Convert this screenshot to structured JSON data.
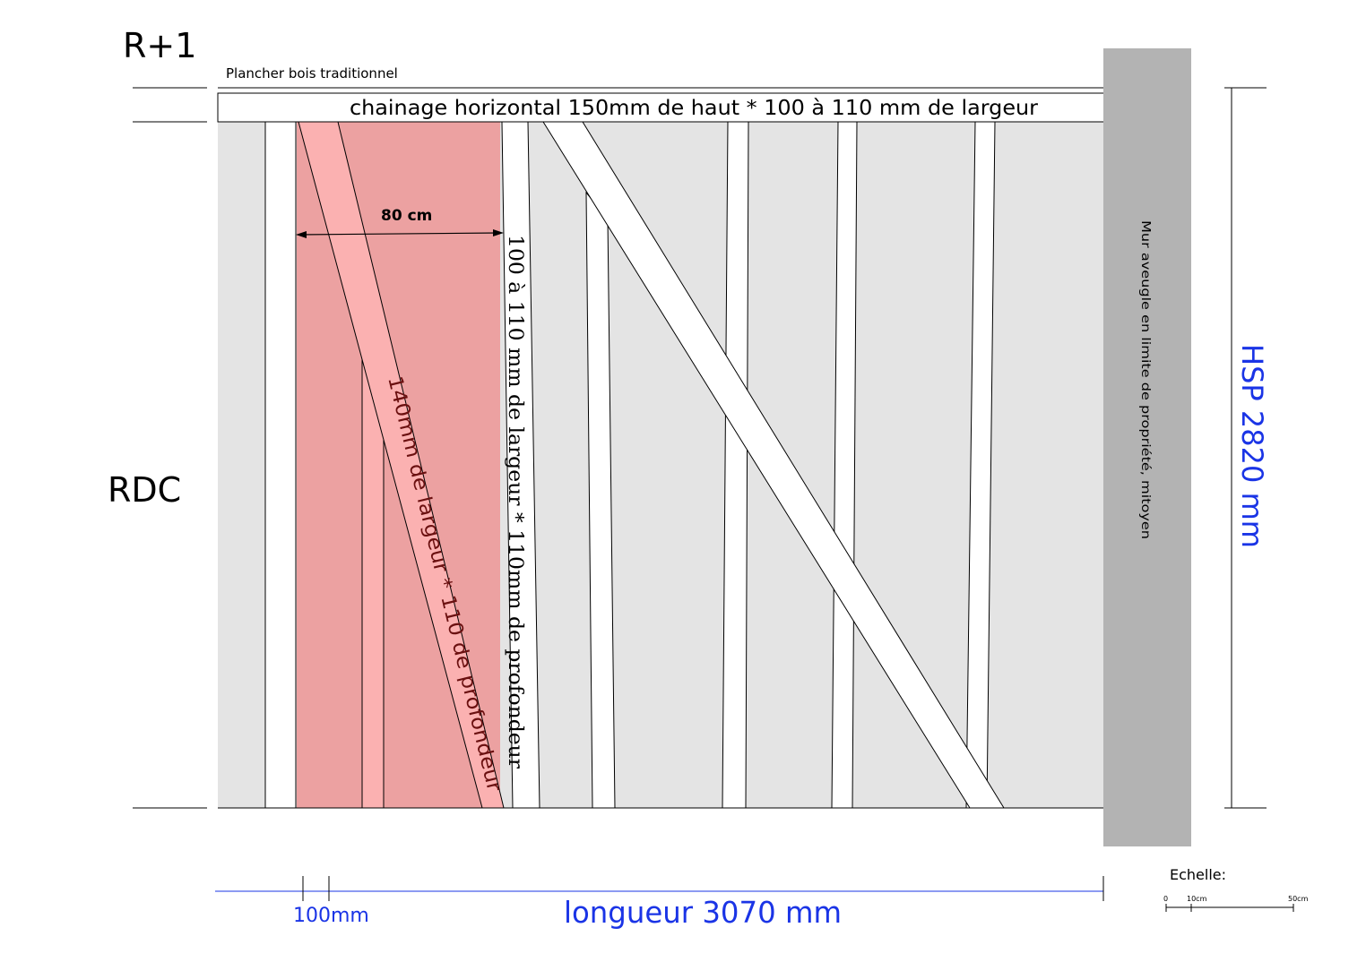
{
  "labels": {
    "level_upper": "R+1",
    "level_ground": "RDC",
    "floor_type": "Plancher bois traditionnel",
    "ring_beam": "chainage horizontal 150mm de haut * 100 à 110 mm de largeur",
    "bay_width": "80 cm",
    "stud_section": "100 à 110 mm de largeur * 110mm de profondeur",
    "brace_section": "140mm de largeur * 110 de profondeur",
    "party_wall": "Mur aveugle en limite de propriété, mitoyen",
    "height": "HSP 2820 mm",
    "length": "longueur 3070 mm",
    "stud_width": "100mm"
  },
  "scale": {
    "title": "Echelle:",
    "ticks": [
      "0",
      "10cm",
      "50cm"
    ]
  },
  "colors": {
    "wall_fill": "#e4e4e4",
    "highlight_fill": "#eca1a1",
    "highlight_brace": "#fbb1b1",
    "party_wall": "#b3b3b3",
    "dimension_blue": "#1a34e6",
    "brace_text": "#6b1010"
  }
}
